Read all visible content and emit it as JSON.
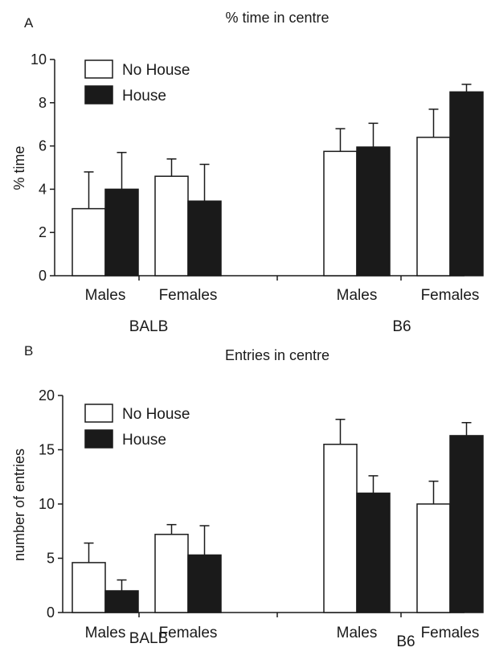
{
  "chart_data": [
    {
      "panel": "A",
      "type": "bar",
      "title": "% time in centre",
      "ylabel": "% time",
      "ylim": [
        0,
        10
      ],
      "yticks": [
        "0",
        "2",
        "4",
        "6",
        "8",
        "10"
      ],
      "strains": [
        "BALB",
        "B6"
      ],
      "groups": [
        "Males",
        "Females",
        "Males",
        "Females"
      ],
      "series": [
        {
          "name": "No House",
          "color": "#ffffff",
          "values": [
            3.1,
            4.6,
            5.75,
            6.4
          ],
          "errors": [
            1.7,
            0.8,
            1.05,
            1.3
          ]
        },
        {
          "name": "House",
          "color": "#1a1a1a",
          "values": [
            4.0,
            3.45,
            5.95,
            8.5
          ],
          "errors": [
            1.7,
            1.7,
            1.1,
            0.35
          ]
        }
      ],
      "legend_position": "top-left",
      "grid": false
    },
    {
      "panel": "B",
      "type": "bar",
      "title": "Entries in centre",
      "ylabel": "number of entries",
      "ylim": [
        0,
        20
      ],
      "yticks": [
        "0",
        "5",
        "10",
        "15",
        "20"
      ],
      "strains": [
        "BALB",
        "B6"
      ],
      "groups": [
        "Males",
        "Females",
        "Males",
        "Females"
      ],
      "series": [
        {
          "name": "No House",
          "color": "#ffffff",
          "values": [
            4.6,
            7.2,
            15.5,
            10.0
          ],
          "errors": [
            1.8,
            0.9,
            2.3,
            2.1
          ]
        },
        {
          "name": "House",
          "color": "#1a1a1a",
          "values": [
            2.0,
            5.3,
            11.0,
            16.3
          ],
          "errors": [
            1.0,
            2.7,
            1.6,
            1.2
          ]
        }
      ],
      "legend_position": "top-left",
      "grid": false
    }
  ]
}
